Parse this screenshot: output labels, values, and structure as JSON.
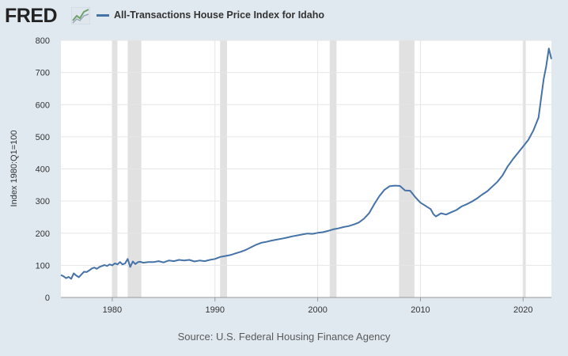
{
  "header": {
    "logo_text": "FRED",
    "logo_icon": "trend-chart-icon"
  },
  "colors": {
    "background": "#e1e9f0",
    "plot_background": "#ffffff",
    "series": "#4572a7",
    "recession": "#e1e1e1",
    "grid": "#e6e6e6"
  },
  "chart_data": {
    "type": "line",
    "title": "",
    "xlabel": "",
    "ylabel": "Index 1980:Q1=100",
    "source": "Source: U.S. Federal Housing Finance Agency",
    "xlim": [
      1975.0,
      2022.75
    ],
    "ylim": [
      0,
      800
    ],
    "x_ticks": [
      1980,
      1990,
      2000,
      2010,
      2020
    ],
    "y_ticks": [
      0,
      100,
      200,
      300,
      400,
      500,
      600,
      700,
      800
    ],
    "grid": true,
    "legend_position": "top-left",
    "recessions": [
      [
        1980.0,
        1980.5
      ],
      [
        1981.5,
        1982.83
      ],
      [
        1990.5,
        1991.17
      ],
      [
        2001.17,
        2001.83
      ],
      [
        2007.92,
        2009.42
      ],
      [
        2020.0,
        2020.25
      ]
    ],
    "series": [
      {
        "name": "All-Transactions House Price Index for Idaho",
        "points": [
          [
            1975.0,
            70
          ],
          [
            1975.25,
            66
          ],
          [
            1975.5,
            60
          ],
          [
            1975.75,
            64
          ],
          [
            1976.0,
            58
          ],
          [
            1976.25,
            75
          ],
          [
            1976.5,
            68
          ],
          [
            1976.75,
            63
          ],
          [
            1977.0,
            72
          ],
          [
            1977.25,
            80
          ],
          [
            1977.5,
            79
          ],
          [
            1977.75,
            84
          ],
          [
            1978.0,
            90
          ],
          [
            1978.25,
            93
          ],
          [
            1978.5,
            89
          ],
          [
            1978.75,
            95
          ],
          [
            1979.0,
            98
          ],
          [
            1979.25,
            101
          ],
          [
            1979.5,
            98
          ],
          [
            1979.75,
            103
          ],
          [
            1980.0,
            100
          ],
          [
            1980.25,
            106
          ],
          [
            1980.5,
            103
          ],
          [
            1980.75,
            110
          ],
          [
            1981.0,
            103
          ],
          [
            1981.25,
            106
          ],
          [
            1981.5,
            120
          ],
          [
            1981.75,
            95
          ],
          [
            1982.0,
            112
          ],
          [
            1982.25,
            104
          ],
          [
            1982.5,
            110
          ],
          [
            1982.75,
            111
          ],
          [
            1983.0,
            108
          ],
          [
            1983.5,
            110
          ],
          [
            1984.0,
            110
          ],
          [
            1984.5,
            113
          ],
          [
            1985.0,
            109
          ],
          [
            1985.5,
            115
          ],
          [
            1986.0,
            113
          ],
          [
            1986.5,
            117
          ],
          [
            1987.0,
            115
          ],
          [
            1987.5,
            117
          ],
          [
            1988.0,
            112
          ],
          [
            1988.5,
            115
          ],
          [
            1989.0,
            113
          ],
          [
            1989.5,
            117
          ],
          [
            1990.0,
            120
          ],
          [
            1990.5,
            126
          ],
          [
            1991.0,
            129
          ],
          [
            1991.5,
            132
          ],
          [
            1992.0,
            137
          ],
          [
            1992.5,
            142
          ],
          [
            1993.0,
            148
          ],
          [
            1993.5,
            156
          ],
          [
            1994.0,
            164
          ],
          [
            1994.5,
            170
          ],
          [
            1995.0,
            173
          ],
          [
            1995.5,
            177
          ],
          [
            1996.0,
            180
          ],
          [
            1996.5,
            183
          ],
          [
            1997.0,
            186
          ],
          [
            1997.5,
            190
          ],
          [
            1998.0,
            193
          ],
          [
            1998.5,
            196
          ],
          [
            1999.0,
            199
          ],
          [
            1999.5,
            198
          ],
          [
            2000.0,
            201
          ],
          [
            2000.5,
            203
          ],
          [
            2001.0,
            207
          ],
          [
            2001.5,
            212
          ],
          [
            2002.0,
            215
          ],
          [
            2002.5,
            219
          ],
          [
            2003.0,
            222
          ],
          [
            2003.5,
            227
          ],
          [
            2004.0,
            233
          ],
          [
            2004.5,
            245
          ],
          [
            2005.0,
            262
          ],
          [
            2005.5,
            290
          ],
          [
            2006.0,
            315
          ],
          [
            2006.5,
            335
          ],
          [
            2007.0,
            346
          ],
          [
            2007.5,
            348
          ],
          [
            2008.0,
            347
          ],
          [
            2008.5,
            333
          ],
          [
            2009.0,
            332
          ],
          [
            2009.5,
            312
          ],
          [
            2010.0,
            295
          ],
          [
            2010.5,
            285
          ],
          [
            2011.0,
            275
          ],
          [
            2011.25,
            260
          ],
          [
            2011.5,
            252
          ],
          [
            2012.0,
            262
          ],
          [
            2012.5,
            258
          ],
          [
            2013.0,
            265
          ],
          [
            2013.5,
            272
          ],
          [
            2014.0,
            283
          ],
          [
            2014.5,
            290
          ],
          [
            2015.0,
            298
          ],
          [
            2015.5,
            308
          ],
          [
            2016.0,
            320
          ],
          [
            2016.5,
            330
          ],
          [
            2017.0,
            345
          ],
          [
            2017.5,
            360
          ],
          [
            2018.0,
            380
          ],
          [
            2018.5,
            408
          ],
          [
            2019.0,
            430
          ],
          [
            2019.5,
            450
          ],
          [
            2020.0,
            470
          ],
          [
            2020.5,
            490
          ],
          [
            2021.0,
            520
          ],
          [
            2021.5,
            560
          ],
          [
            2021.75,
            620
          ],
          [
            2022.0,
            680
          ],
          [
            2022.25,
            720
          ],
          [
            2022.5,
            775
          ],
          [
            2022.75,
            742
          ]
        ]
      }
    ]
  }
}
